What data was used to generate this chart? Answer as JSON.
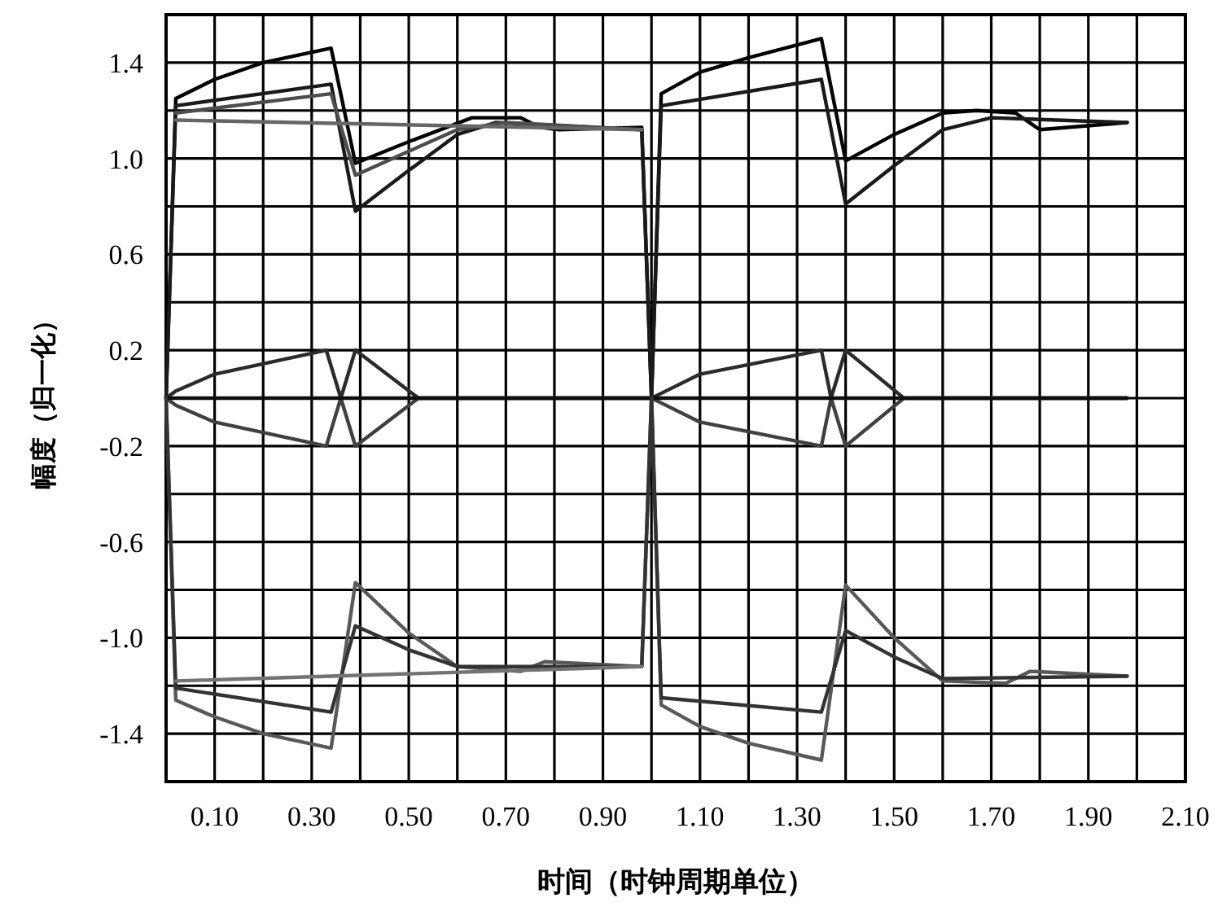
{
  "chart_data": {
    "type": "line",
    "xlabel": "时间（时钟周期单位）",
    "ylabel": "幅度（归一化）",
    "xlim": [
      0,
      2.1
    ],
    "ylim": [
      -1.6,
      1.6
    ],
    "grid": true,
    "marker": "none",
    "line_style": "solid",
    "xticks": [
      {
        "value": 0,
        "label": null
      },
      {
        "value": 0.1,
        "label": "0.10"
      },
      {
        "value": 0.2,
        "label": null
      },
      {
        "value": 0.3,
        "label": "0.30"
      },
      {
        "value": 0.4,
        "label": null
      },
      {
        "value": 0.5,
        "label": "0.50"
      },
      {
        "value": 0.6,
        "label": null
      },
      {
        "value": 0.7,
        "label": "0.70"
      },
      {
        "value": 0.8,
        "label": null
      },
      {
        "value": 0.9,
        "label": "0.90"
      },
      {
        "value": 1.0,
        "label": null
      },
      {
        "value": 1.1,
        "label": "1.10"
      },
      {
        "value": 1.2,
        "label": null
      },
      {
        "value": 1.3,
        "label": "1.30"
      },
      {
        "value": 1.4,
        "label": null
      },
      {
        "value": 1.5,
        "label": "1.50"
      },
      {
        "value": 1.6,
        "label": null
      },
      {
        "value": 1.7,
        "label": "1.70"
      },
      {
        "value": 1.8,
        "label": null
      },
      {
        "value": 1.9,
        "label": "1.90"
      },
      {
        "value": 2.0,
        "label": null
      },
      {
        "value": 2.1,
        "label": "2.10"
      }
    ],
    "yticks": [
      {
        "value": 1.6,
        "label": null
      },
      {
        "value": 1.4,
        "label": "1.4"
      },
      {
        "value": 1.2,
        "label": null
      },
      {
        "value": 1.0,
        "label": "1.0"
      },
      {
        "value": 0.8,
        "label": null
      },
      {
        "value": 0.6,
        "label": "0.6"
      },
      {
        "value": 0.4,
        "label": null
      },
      {
        "value": 0.2,
        "label": "0.2"
      },
      {
        "value": 0,
        "label": null
      },
      {
        "value": -0.2,
        "label": "-0.2"
      },
      {
        "value": -0.4,
        "label": null
      },
      {
        "value": -0.6,
        "label": "-0.6"
      },
      {
        "value": -0.8,
        "label": null
      },
      {
        "value": -1.0,
        "label": "-1.0"
      },
      {
        "value": -1.2,
        "label": null
      },
      {
        "value": -1.4,
        "label": "-1.4"
      },
      {
        "value": -1.6,
        "label": null
      }
    ],
    "series": [
      {
        "color": "#000000",
        "x": [
          0,
          0.02,
          0.1,
          0.2,
          0.34,
          0.39,
          0.5,
          0.63,
          0.73,
          0.77,
          0.81,
          0.98,
          1.0,
          1.02,
          1.1,
          1.2,
          1.35,
          1.4,
          1.5,
          1.6,
          1.67,
          1.75,
          1.8,
          1.98
        ],
        "values": [
          0,
          1.25,
          1.33,
          1.4,
          1.46,
          0.98,
          1.07,
          1.17,
          1.17,
          1.13,
          1.12,
          1.13,
          0,
          1.27,
          1.36,
          1.42,
          1.5,
          0.99,
          1.1,
          1.19,
          1.2,
          1.19,
          1.12,
          1.15
        ]
      },
      {
        "color": "#1a1a1a",
        "x": [
          0,
          0.02,
          0.34,
          0.39,
          0.5,
          0.6,
          0.68,
          0.98,
          1.0,
          1.02,
          1.35,
          1.4,
          1.5,
          1.6,
          1.7,
          1.98
        ],
        "values": [
          0,
          1.22,
          1.31,
          0.78,
          0.95,
          1.1,
          1.15,
          1.12,
          0,
          1.22,
          1.33,
          0.81,
          0.97,
          1.12,
          1.17,
          1.15
        ]
      },
      {
        "color": "#4d4d4d",
        "x": [
          0.02,
          0.34,
          0.39,
          0.5,
          0.6,
          0.7,
          0.98
        ],
        "values": [
          1.19,
          1.27,
          0.93,
          1.03,
          1.12,
          1.15,
          1.12
        ]
      },
      {
        "color": "#666666",
        "x": [
          0.02,
          0.98
        ],
        "values": [
          1.16,
          1.12
        ]
      },
      {
        "color": "#2b2b2b",
        "x": [
          0,
          0.02,
          0.1,
          0.33,
          0.36,
          0.39,
          0.52,
          0.98,
          1.0,
          1.02,
          1.1,
          1.35,
          1.37,
          1.4,
          1.52,
          1.98
        ],
        "values": [
          0,
          0.03,
          0.1,
          0.2,
          0,
          0.2,
          0,
          0,
          0,
          0.02,
          0.1,
          0.2,
          0,
          0.2,
          0,
          0
        ]
      },
      {
        "color": "#404040",
        "x": [
          0,
          0.02,
          0.1,
          0.33,
          0.36,
          0.39,
          0.52,
          0.98,
          1.0,
          1.02,
          1.1,
          1.35,
          1.37,
          1.4,
          1.52,
          1.98
        ],
        "values": [
          0,
          -0.03,
          -0.1,
          -0.2,
          0,
          -0.2,
          0,
          0,
          0,
          -0.02,
          -0.1,
          -0.2,
          0,
          -0.2,
          0,
          0
        ]
      },
      {
        "color": "#0d0d0d",
        "x": [
          0,
          1.98
        ],
        "values": [
          0,
          0
        ]
      },
      {
        "color": "#595959",
        "x": [
          0,
          0.02,
          0.1,
          0.2,
          0.34,
          0.39,
          0.5,
          0.6,
          0.73,
          0.78,
          0.98,
          1.0,
          1.02,
          1.1,
          1.2,
          1.35,
          1.4,
          1.5,
          1.6,
          1.73,
          1.78,
          1.98
        ],
        "values": [
          0,
          -1.26,
          -1.33,
          -1.4,
          -1.46,
          -0.77,
          -0.98,
          -1.12,
          -1.14,
          -1.1,
          -1.12,
          0,
          -1.28,
          -1.37,
          -1.44,
          -1.51,
          -0.78,
          -1.0,
          -1.18,
          -1.19,
          -1.14,
          -1.16
        ]
      },
      {
        "color": "#333333",
        "x": [
          0,
          0.02,
          0.34,
          0.39,
          0.5,
          0.6,
          0.98,
          1.0,
          1.02,
          1.35,
          1.4,
          1.5,
          1.6,
          1.98
        ],
        "values": [
          0,
          -1.21,
          -1.31,
          -0.95,
          -1.05,
          -1.12,
          -1.12,
          0,
          -1.25,
          -1.31,
          -0.97,
          -1.08,
          -1.17,
          -1.16
        ]
      },
      {
        "color": "#737373",
        "x": [
          0.02,
          0.98
        ],
        "values": [
          -1.18,
          -1.12
        ]
      }
    ]
  }
}
